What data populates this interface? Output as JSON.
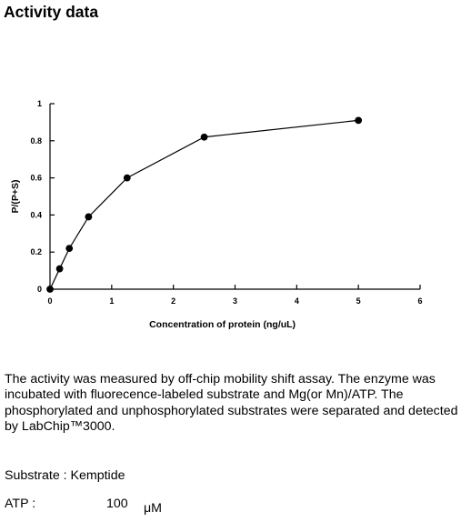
{
  "heading": "Activity data",
  "chart_data": {
    "type": "line",
    "title": "",
    "xlabel": "Concentration of protein (ng/uL)",
    "ylabel": "P/(P+S)",
    "xlim": [
      0,
      6
    ],
    "ylim": [
      0,
      1
    ],
    "x_ticks": [
      "0",
      "1",
      "2",
      "3",
      "4",
      "5",
      "6"
    ],
    "y_ticks": [
      "0",
      "0.2",
      "0.4",
      "0.6",
      "0.8",
      "1"
    ],
    "grid": false,
    "legend": "none",
    "series": [
      {
        "x": [
          0,
          0.156,
          0.313,
          0.625,
          1.25,
          2.5,
          5
        ],
        "y": [
          0,
          0.11,
          0.22,
          0.39,
          0.6,
          0.82,
          0.91
        ]
      }
    ]
  },
  "description": "The activity was measured by off-chip mobility shift assay. The enzyme was incubated with fluorecence-labeled  substrate and Mg(or Mn)/ATP. The phosphorylated and unphosphorylated substrates were separated and detected by LabChip™3000.",
  "substrate": "Substrate : Kemptide",
  "atp": {
    "label": "ATP :",
    "value": "100",
    "unit": "μM"
  }
}
